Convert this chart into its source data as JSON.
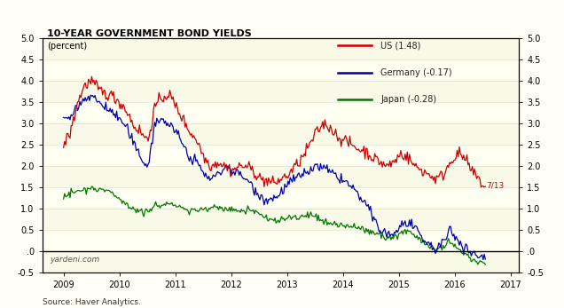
{
  "title": "10-YEAR GOVERNMENT BOND YIELDS",
  "subtitle": "(percent)",
  "source": "Source: Haver Analytics.",
  "watermark": "yardeni.com",
  "annotation": "7/13",
  "background_color": "#FFFFF5",
  "plot_bg_color": "#FFFFF5",
  "us_color": "#CC0000",
  "de_color": "#0000AA",
  "jp_color": "#007700",
  "ylim": [
    -0.5,
    5.0
  ],
  "yticks": [
    -0.5,
    0.0,
    0.5,
    1.0,
    1.5,
    2.0,
    2.5,
    3.0,
    3.5,
    4.0,
    4.5,
    5.0
  ],
  "xlim_min": 2008.62,
  "xlim_max": 2017.15,
  "xtick_years": [
    2009,
    2010,
    2011,
    2012,
    2013,
    2014,
    2015,
    2016,
    2017
  ],
  "legend_labels": [
    "US (1.48)",
    "Germany (-0.17)",
    "Japan (-0.28)"
  ]
}
